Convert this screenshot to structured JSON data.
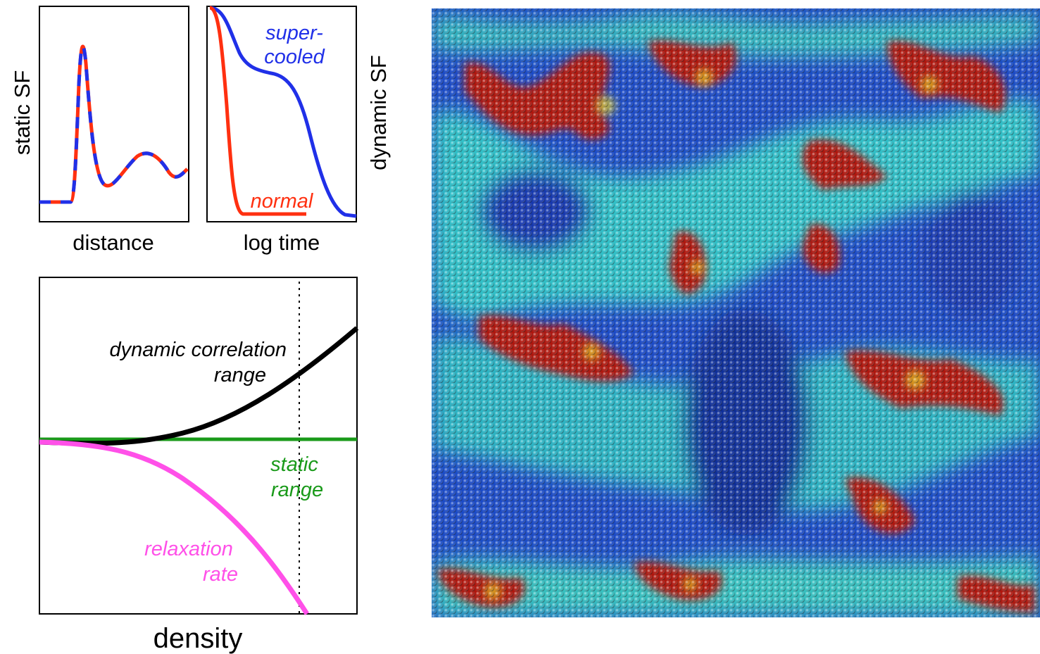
{
  "static_panel": {
    "y_label": "static SF",
    "x_label": "distance"
  },
  "dynamic_panel": {
    "y_label": "dynamic SF",
    "x_label": "log time",
    "supercooled": [
      "super-",
      "cooled"
    ],
    "normal": "normal"
  },
  "range_panel": {
    "x_label": "density",
    "dynamic_range": [
      "dynamic correlation",
      "range"
    ],
    "static_range": [
      "static",
      "range"
    ],
    "relaxation_rate": [
      "relaxation",
      "rate"
    ]
  }
}
